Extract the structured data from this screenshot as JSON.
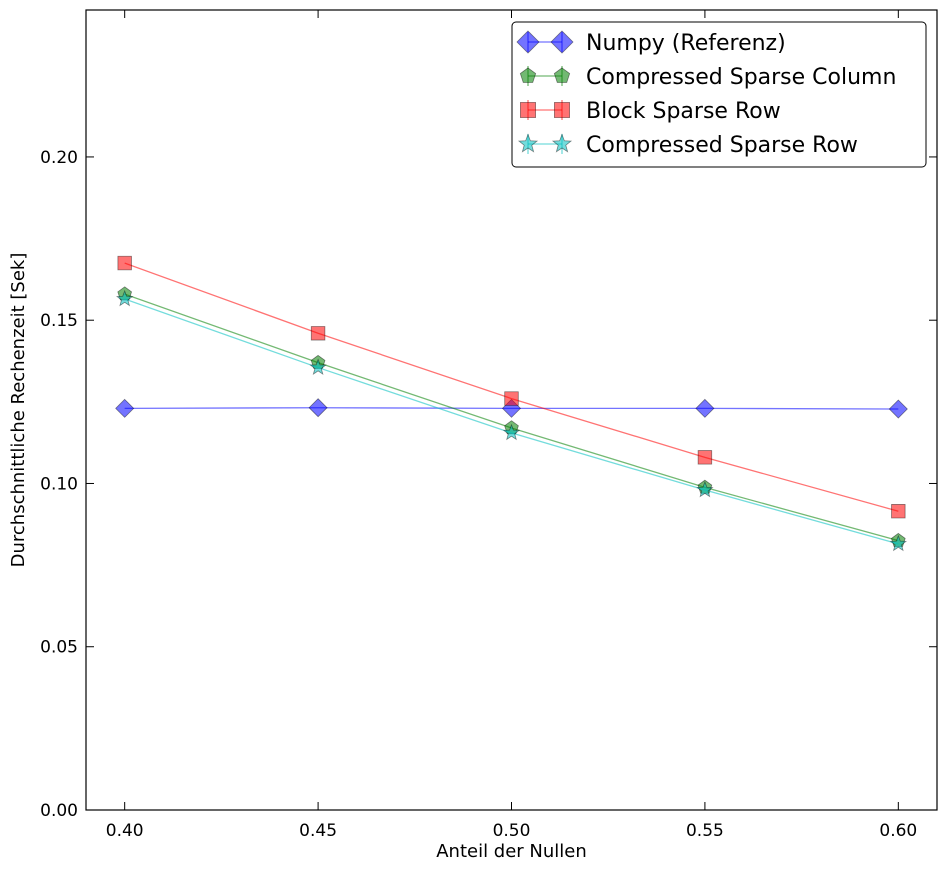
{
  "chart_data": {
    "type": "line",
    "xlabel": "Anteil der Nullen",
    "ylabel": "Durchschnittliche Rechenzeit [Sek]",
    "xlim": [
      0.39,
      0.61
    ],
    "ylim": [
      0.0,
      0.245
    ],
    "x_ticks": [
      "0.40",
      "0.45",
      "0.50",
      "0.55",
      "0.60"
    ],
    "y_ticks": [
      "0.00",
      "0.05",
      "0.10",
      "0.15",
      "0.20"
    ],
    "grid": false,
    "legend_position": "top-right",
    "x": [
      0.4,
      0.45,
      0.5,
      0.55,
      0.6
    ],
    "series": [
      {
        "name": "Numpy (Referenz)",
        "values": [
          0.123,
          0.1232,
          0.123,
          0.123,
          0.1228
        ],
        "color": "#0000ff",
        "marker": "diamond"
      },
      {
        "name": "Compressed Sparse Column",
        "values": [
          0.158,
          0.137,
          0.117,
          0.0988,
          0.0825
        ],
        "color": "#008000",
        "marker": "pentagon"
      },
      {
        "name": "Block Sparse Row",
        "values": [
          0.1675,
          0.146,
          0.126,
          0.108,
          0.0915
        ],
        "color": "#ff0000",
        "marker": "square"
      },
      {
        "name": "Compressed Sparse Row",
        "values": [
          0.1565,
          0.1355,
          0.1155,
          0.098,
          0.0815
        ],
        "color": "#00bfbf",
        "marker": "star"
      }
    ]
  }
}
